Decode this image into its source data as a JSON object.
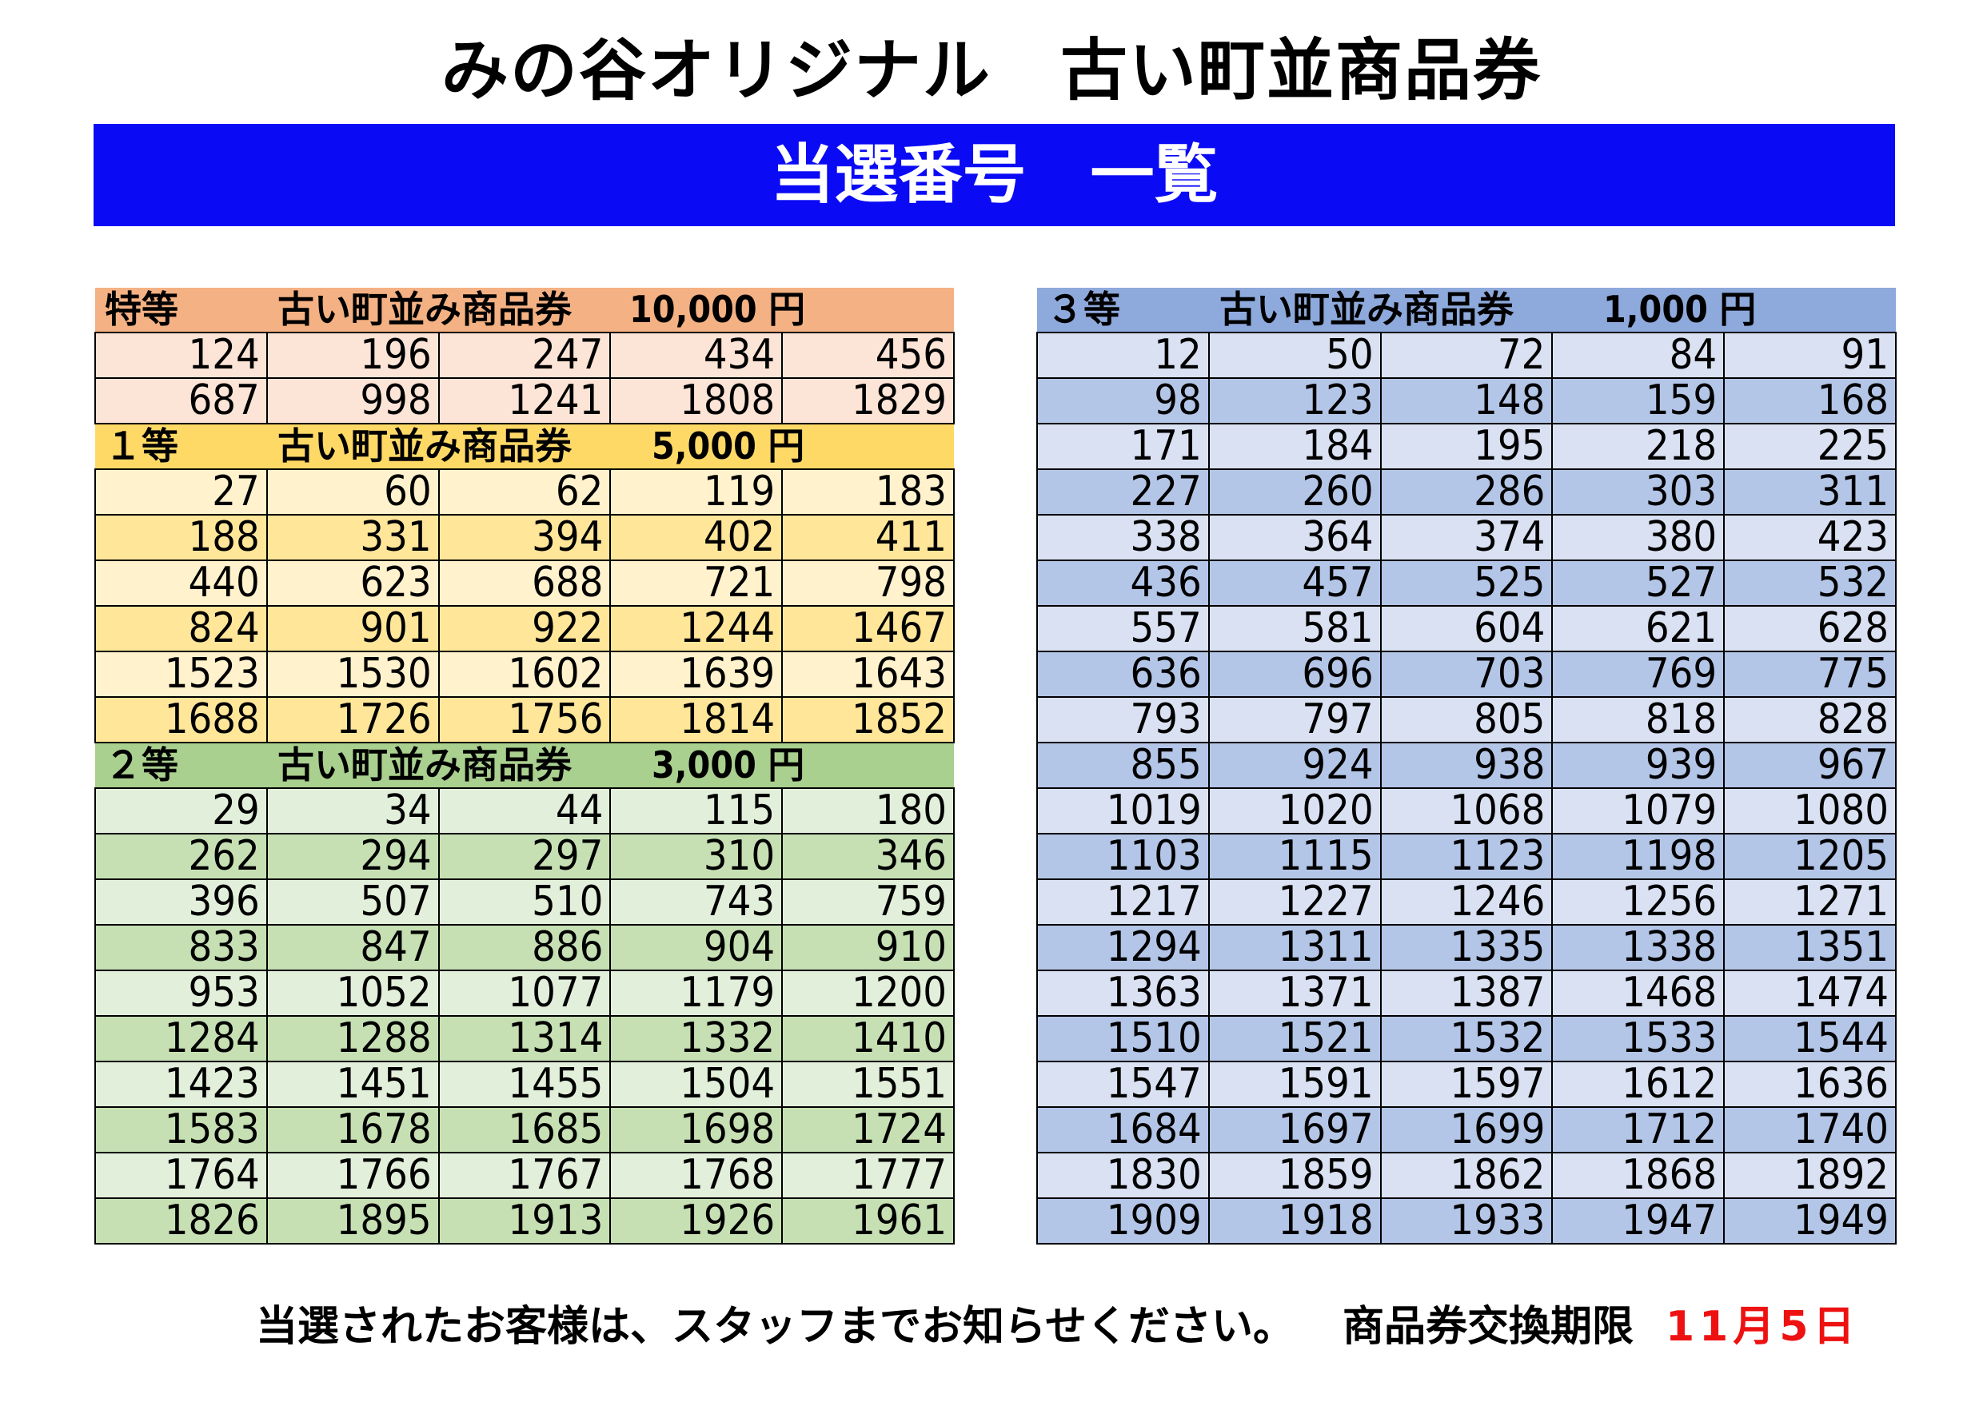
{
  "title": "みの谷オリジナル　古い町並商品券",
  "banner": "当選番号　一覧",
  "left_sections": [
    {
      "grade": "特等",
      "name": "古い町並み商品券",
      "amount": "10,000 円",
      "header_color": "#f4b183",
      "row_colors": [
        "#fce4d6",
        "#fce4d6"
      ],
      "rows": [
        [
          "124",
          "196",
          "247",
          "434",
          "456"
        ],
        [
          "687",
          "998",
          "1241",
          "1808",
          "1829"
        ]
      ]
    },
    {
      "grade": "１等",
      "name": "古い町並み商品券",
      "amount": "5,000 円",
      "header_color": "#ffd966",
      "row_colors": [
        "#fff2cc",
        "#ffe699"
      ],
      "rows": [
        [
          "27",
          "60",
          "62",
          "119",
          "183"
        ],
        [
          "188",
          "331",
          "394",
          "402",
          "411"
        ],
        [
          "440",
          "623",
          "688",
          "721",
          "798"
        ],
        [
          "824",
          "901",
          "922",
          "1244",
          "1467"
        ],
        [
          "1523",
          "1530",
          "1602",
          "1639",
          "1643"
        ],
        [
          "1688",
          "1726",
          "1756",
          "1814",
          "1852"
        ]
      ]
    },
    {
      "grade": "２等",
      "name": "古い町並み商品券",
      "amount": "3,000 円",
      "header_color": "#a9d08e",
      "row_colors": [
        "#e2efda",
        "#c6e0b4"
      ],
      "rows": [
        [
          "29",
          "34",
          "44",
          "115",
          "180"
        ],
        [
          "262",
          "294",
          "297",
          "310",
          "346"
        ],
        [
          "396",
          "507",
          "510",
          "743",
          "759"
        ],
        [
          "833",
          "847",
          "886",
          "904",
          "910"
        ],
        [
          "953",
          "1052",
          "1077",
          "1179",
          "1200"
        ],
        [
          "1284",
          "1288",
          "1314",
          "1332",
          "1410"
        ],
        [
          "1423",
          "1451",
          "1455",
          "1504",
          "1551"
        ],
        [
          "1583",
          "1678",
          "1685",
          "1698",
          "1724"
        ],
        [
          "1764",
          "1766",
          "1767",
          "1768",
          "1777"
        ],
        [
          "1826",
          "1895",
          "1913",
          "1926",
          "1961"
        ]
      ]
    }
  ],
  "right_sections": [
    {
      "grade": "３等",
      "name": "古い町並み商品券",
      "amount": "1,000 円",
      "header_color": "#8ea9db",
      "row_colors": [
        "#d9e1f2",
        "#b4c6e7"
      ],
      "rows": [
        [
          "12",
          "50",
          "72",
          "84",
          "91"
        ],
        [
          "98",
          "123",
          "148",
          "159",
          "168"
        ],
        [
          "171",
          "184",
          "195",
          "218",
          "225"
        ],
        [
          "227",
          "260",
          "286",
          "303",
          "311"
        ],
        [
          "338",
          "364",
          "374",
          "380",
          "423"
        ],
        [
          "436",
          "457",
          "525",
          "527",
          "532"
        ],
        [
          "557",
          "581",
          "604",
          "621",
          "628"
        ],
        [
          "636",
          "696",
          "703",
          "769",
          "775"
        ],
        [
          "793",
          "797",
          "805",
          "818",
          "828"
        ],
        [
          "855",
          "924",
          "938",
          "939",
          "967"
        ],
        [
          "1019",
          "1020",
          "1068",
          "1079",
          "1080"
        ],
        [
          "1103",
          "1115",
          "1123",
          "1198",
          "1205"
        ],
        [
          "1217",
          "1227",
          "1246",
          "1256",
          "1271"
        ],
        [
          "1294",
          "1311",
          "1335",
          "1338",
          "1351"
        ],
        [
          "1363",
          "1371",
          "1387",
          "1468",
          "1474"
        ],
        [
          "1510",
          "1521",
          "1532",
          "1533",
          "1544"
        ],
        [
          "1547",
          "1591",
          "1597",
          "1612",
          "1636"
        ],
        [
          "1684",
          "1697",
          "1699",
          "1712",
          "1740"
        ],
        [
          "1830",
          "1859",
          "1862",
          "1868",
          "1892"
        ],
        [
          "1909",
          "1918",
          "1933",
          "1947",
          "1949"
        ]
      ]
    }
  ],
  "footer": {
    "notice": "当選されたお客様は、スタッフまでお知らせください。",
    "deadline_label": "商品券交換期限",
    "deadline_date": "11月5日",
    "deadline_color": "#ee1111"
  }
}
